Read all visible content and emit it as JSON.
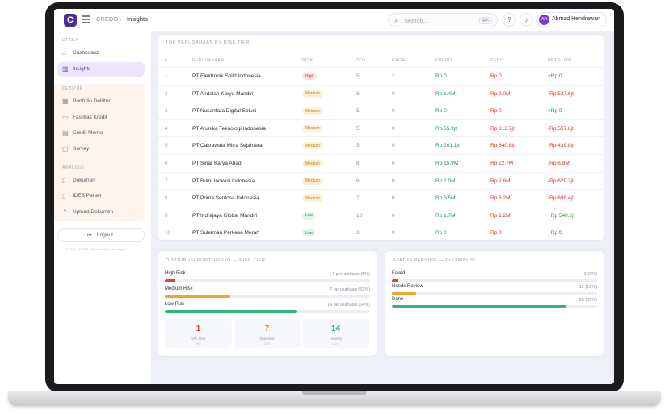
{
  "header": {
    "logo": "C",
    "breadcrumb": [
      "CREDO",
      "Insights"
    ],
    "search_placeholder": "Search...",
    "search_shortcut": "⌘K",
    "user_initials": "AH",
    "user_name": "Ahmad Hendrawan"
  },
  "sidebar": {
    "sections": [
      "UTAMA",
      "DEBITUR",
      "ANALISIS"
    ],
    "items": [
      {
        "label": "Dashboard",
        "icon": "home-icon"
      },
      {
        "label": "Insights",
        "icon": "chart-icon"
      },
      {
        "label": "Portfolio Debitur",
        "icon": "building-icon"
      },
      {
        "label": "Fasilitas Kredit",
        "icon": "card-icon"
      },
      {
        "label": "Credit Memo",
        "icon": "memo-icon"
      },
      {
        "label": "Survey",
        "icon": "clipboard-icon"
      },
      {
        "label": "Dokumen",
        "icon": "document-icon"
      },
      {
        "label": "iDEB Parser",
        "icon": "parser-icon"
      },
      {
        "label": "Upload Dokumen",
        "icon": "upload-icon"
      }
    ],
    "logout": "Logout",
    "copyright": "© 2025 CREDO · Bank Analysis Intelligent"
  },
  "top_table": {
    "title": "TOP PERUSAHAAN BY RISK TIER",
    "columns": [
      "#",
      "PERUSAHAAN",
      "RISK",
      "DOK",
      "GAGAL",
      "KREDIT",
      "DEBIT",
      "NET FLOW"
    ],
    "rows": [
      {
        "no": "1",
        "name": "PT Elektronik Solid Indonesia",
        "risk": "High",
        "dok": "5",
        "gagal": "1",
        "kredit": "Rp 0",
        "debit": "Rp 0",
        "net": "+Rp 0"
      },
      {
        "no": "2",
        "name": "PT Andalan Karya Mandiri",
        "risk": "Medium",
        "dok": "8",
        "gagal": "0",
        "kredit": "Rp 1.4M",
        "debit": "Rp 2.0M",
        "net": "-Rp 527.6jt"
      },
      {
        "no": "3",
        "name": "PT Nusantara Digital Solusi",
        "risk": "Medium",
        "dok": "5",
        "gagal": "0",
        "kredit": "Rp 0",
        "debit": "Rp 0",
        "net": "+Rp 0"
      },
      {
        "no": "4",
        "name": "PT Arunika Teknologi Indonesia",
        "risk": "Medium",
        "dok": "5",
        "gagal": "0",
        "kredit": "Rp 55.9jt",
        "debit": "Rp 613.7jt",
        "net": "-Rp 557.8jt"
      },
      {
        "no": "5",
        "name": "PT Cakrawala Mitra Sejahtera",
        "risk": "Medium",
        "dok": "5",
        "gagal": "0",
        "kredit": "Rp 201.1jt",
        "debit": "Rp 640.8jt",
        "net": "-Rp 439.8jt"
      },
      {
        "no": "6",
        "name": "PT Sinar Karya Abadi",
        "risk": "Medium",
        "dok": "8",
        "gagal": "0",
        "kredit": "Rp 15.9M",
        "debit": "Rp 22.7M",
        "net": "-Rp 6.8M"
      },
      {
        "no": "7",
        "name": "PT Bumi Inovasi Indonesia",
        "risk": "Medium",
        "dok": "6",
        "gagal": "0",
        "kredit": "Rp 2.0M",
        "debit": "Rp 2.6M",
        "net": "-Rp 629.2jt"
      },
      {
        "no": "8",
        "name": "PT Prima Sentosa Indonesia",
        "risk": "Medium",
        "dok": "7",
        "gagal": "0",
        "kredit": "Rp 5.5M",
        "debit": "Rp 6.2M",
        "net": "-Rp 698.4jt"
      },
      {
        "no": "9",
        "name": "PT Indrajaya Global Mandiri",
        "risk": "Low",
        "dok": "10",
        "gagal": "0",
        "kredit": "Rp 1.7M",
        "debit": "Rp 1.2M",
        "net": "+Rp 540.2jt"
      },
      {
        "no": "10",
        "name": "PT Suleiman Perkasa Merah",
        "risk": "Low",
        "dok": "3",
        "gagal": "0",
        "kredit": "Rp 0",
        "debit": "Rp 0",
        "net": "+Rp 0"
      }
    ]
  },
  "portfolio": {
    "title": "DISTRIBUSI PORTOFOLIO — RISK TIER",
    "bars": [
      {
        "label": "High Risk",
        "right": "1 perusahaan (5%)",
        "pct": 5,
        "color": "#e0413b"
      },
      {
        "label": "Medium Risk",
        "right": "7 perusahaan (32%)",
        "pct": 32,
        "color": "#f0a62a"
      },
      {
        "label": "Low Risk",
        "right": "14 perusahaan (64%)",
        "pct": 64,
        "color": "#2fb67a"
      }
    ],
    "stats": [
      {
        "value": "1",
        "label": "NPL Risk",
        "sub": "5%",
        "color": "#e0413b"
      },
      {
        "value": "7",
        "label": "Watchlist",
        "sub": "32%",
        "color": "#e2901a"
      },
      {
        "value": "14",
        "label": "Healthy",
        "sub": "64%",
        "color": "#2aa86e"
      }
    ]
  },
  "parsing": {
    "title": "STATUS PARSING — DISTRIBUSI",
    "bars": [
      {
        "label": "Failed",
        "right": "3 (3%)",
        "pct": 3,
        "color": "#e0413b"
      },
      {
        "label": "Needs Review",
        "right": "12 (12%)",
        "pct": 12,
        "color": "#f0a62a"
      },
      {
        "label": "Done",
        "right": "85 (85%)",
        "pct": 85,
        "color": "#2fb67a"
      }
    ]
  }
}
